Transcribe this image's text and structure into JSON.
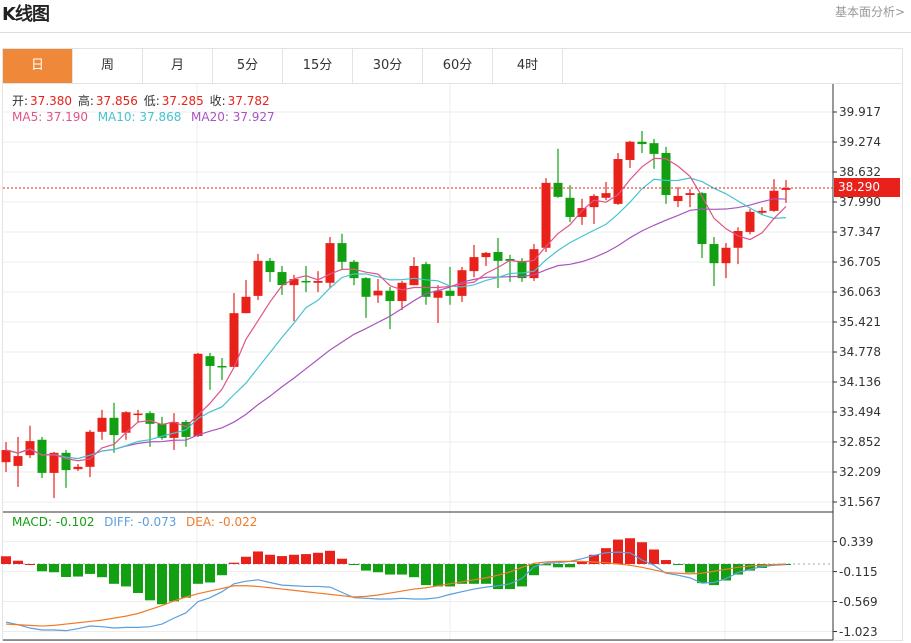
{
  "header": {
    "title": "K线图",
    "more_link": "基本面分析>"
  },
  "tabs": [
    {
      "label": "日",
      "active": true
    },
    {
      "label": "周"
    },
    {
      "label": "月"
    },
    {
      "label": "5分"
    },
    {
      "label": "15分"
    },
    {
      "label": "30分"
    },
    {
      "label": "60分"
    },
    {
      "label": "4时"
    }
  ],
  "info": {
    "open_label": "开:",
    "open": "37.380",
    "high_label": "高:",
    "high": "37.856",
    "low_label": "低:",
    "low": "37.285",
    "close_label": "收:",
    "close": "37.782",
    "ma5": "MA5: 37.190",
    "ma10": "MA10: 37.868",
    "ma20": "MA20: 37.927"
  },
  "macd_info": {
    "macd": "MACD: -0.102",
    "diff": "DIFF: -0.073",
    "dea": "DEA: -0.022"
  },
  "current_price": "38.290",
  "colors": {
    "up": "#e8211a",
    "down": "#12a012",
    "ma5": "#e0548a",
    "ma10": "#45c3cf",
    "ma20": "#a855c0",
    "diff": "#5a9fe0",
    "dea": "#f07a2a",
    "active_tab": "#f0883a"
  },
  "chart_data": {
    "type": "candlestick",
    "price_ticks": [
      "39.917",
      "39.274",
      "38.632",
      "37.990",
      "37.347",
      "36.705",
      "36.063",
      "35.421",
      "34.778",
      "34.136",
      "33.494",
      "32.852",
      "32.209",
      "31.567"
    ],
    "price_range": [
      31.567,
      39.917
    ],
    "macd_ticks": [
      "0.339",
      "-0.115",
      "-0.569",
      "-1.023"
    ],
    "ohlc": [
      [
        32.42,
        32.68,
        32.85,
        32.21
      ],
      [
        32.34,
        32.55,
        32.96,
        31.89
      ],
      [
        32.57,
        32.87,
        33.2,
        32.51
      ],
      [
        32.9,
        32.19,
        32.96,
        32.08
      ],
      [
        32.19,
        32.62,
        32.64,
        31.65
      ],
      [
        32.62,
        32.25,
        32.68,
        31.87
      ],
      [
        32.27,
        32.32,
        32.38,
        32.23
      ],
      [
        32.32,
        33.07,
        33.11,
        32.1
      ],
      [
        33.07,
        33.37,
        33.54,
        32.9
      ],
      [
        33.37,
        33.0,
        33.69,
        32.62
      ],
      [
        33.05,
        33.49,
        33.51,
        32.9
      ],
      [
        33.44,
        33.46,
        33.54,
        33.26
      ],
      [
        33.47,
        33.24,
        33.51,
        32.75
      ],
      [
        33.24,
        32.94,
        33.39,
        32.9
      ],
      [
        32.94,
        33.28,
        33.47,
        32.68
      ],
      [
        33.28,
        32.96,
        33.32,
        32.75
      ],
      [
        32.98,
        34.74,
        34.76,
        32.96
      ],
      [
        34.69,
        34.48,
        34.76,
        33.97
      ],
      [
        34.48,
        34.46,
        34.65,
        34.18
      ],
      [
        34.46,
        35.61,
        36.04,
        34.46
      ],
      [
        35.61,
        35.96,
        36.32,
        35.61
      ],
      [
        35.98,
        36.73,
        36.88,
        35.89
      ],
      [
        36.73,
        36.49,
        36.79,
        36.28
      ],
      [
        36.49,
        36.21,
        36.62,
        36.0
      ],
      [
        36.21,
        36.34,
        36.43,
        35.44
      ],
      [
        36.3,
        36.28,
        36.62,
        36.06
      ],
      [
        36.26,
        36.3,
        36.51,
        36.06
      ],
      [
        36.26,
        37.11,
        37.24,
        36.15
      ],
      [
        37.11,
        36.71,
        37.31,
        36.53
      ],
      [
        36.71,
        36.36,
        36.75,
        36.21
      ],
      [
        36.36,
        35.96,
        36.38,
        35.51
      ],
      [
        35.99,
        36.09,
        36.34,
        35.83
      ],
      [
        36.09,
        35.87,
        36.17,
        35.27
      ],
      [
        35.87,
        36.26,
        36.3,
        35.68
      ],
      [
        36.21,
        36.62,
        36.81,
        36.21
      ],
      [
        36.66,
        35.96,
        36.71,
        35.79
      ],
      [
        35.94,
        36.09,
        36.21,
        35.4
      ],
      [
        36.09,
        35.98,
        36.6,
        35.79
      ],
      [
        35.98,
        36.53,
        36.6,
        35.85
      ],
      [
        36.51,
        36.81,
        37.07,
        36.38
      ],
      [
        36.81,
        36.9,
        36.92,
        36.62
      ],
      [
        36.92,
        36.73,
        37.22,
        36.15
      ],
      [
        36.77,
        36.73,
        36.86,
        36.28
      ],
      [
        36.73,
        36.36,
        36.79,
        36.28
      ],
      [
        36.36,
        36.98,
        37.09,
        36.3
      ],
      [
        37.01,
        38.4,
        38.5,
        36.92
      ],
      [
        38.4,
        38.1,
        39.13,
        38.08
      ],
      [
        38.08,
        37.67,
        38.35,
        37.56
      ],
      [
        37.67,
        37.86,
        38.06,
        37.5
      ],
      [
        37.88,
        38.12,
        38.16,
        37.52
      ],
      [
        38.08,
        38.18,
        38.42,
        38.03
      ],
      [
        37.95,
        38.91,
        39.04,
        37.93
      ],
      [
        38.89,
        39.28,
        39.3,
        38.72
      ],
      [
        39.28,
        39.23,
        39.51,
        39.04
      ],
      [
        39.25,
        39.02,
        39.34,
        38.7
      ],
      [
        39.04,
        38.14,
        39.17,
        37.95
      ],
      [
        38.01,
        38.12,
        38.31,
        37.88
      ],
      [
        38.14,
        38.18,
        38.27,
        37.88
      ],
      [
        38.18,
        37.09,
        38.2,
        36.79
      ],
      [
        37.09,
        36.68,
        37.24,
        36.19
      ],
      [
        36.68,
        37.01,
        37.11,
        36.36
      ],
      [
        37.01,
        37.37,
        37.45,
        36.66
      ],
      [
        37.35,
        37.78,
        37.84,
        37.3
      ],
      [
        37.76,
        37.8,
        37.88,
        37.71
      ],
      [
        37.8,
        38.23,
        38.48,
        37.78
      ],
      [
        38.25,
        38.29,
        38.46,
        37.97
      ]
    ],
    "macd_hist": [
      0.117,
      0.05,
      0,
      -0.11,
      -0.125,
      -0.197,
      -0.19,
      -0.15,
      -0.2,
      -0.3,
      -0.34,
      -0.44,
      -0.55,
      -0.61,
      -0.566,
      -0.51,
      -0.3,
      -0.28,
      -0.17,
      0.02,
      0.11,
      0.19,
      0.14,
      0.12,
      0.14,
      0.15,
      0.17,
      0.2,
      0.08,
      -0.015,
      -0.1,
      -0.125,
      -0.16,
      -0.16,
      -0.2,
      -0.32,
      -0.34,
      -0.34,
      -0.3,
      -0.3,
      -0.3,
      -0.38,
      -0.38,
      -0.34,
      -0.17,
      -0.02,
      -0.05,
      -0.05,
      0.04,
      0.14,
      0.24,
      0.37,
      0.39,
      0.33,
      0.22,
      0.06,
      -0.01,
      -0.13,
      -0.29,
      -0.32,
      -0.25,
      -0.16,
      -0.1,
      -0.06,
      -0.02,
      -0.01
    ],
    "diff": [
      -0.88,
      -0.92,
      -0.97,
      -1.0,
      -1.0,
      -1.01,
      -0.98,
      -0.94,
      -0.95,
      -0.97,
      -0.96,
      -0.96,
      -0.95,
      -0.91,
      -0.82,
      -0.74,
      -0.57,
      -0.51,
      -0.42,
      -0.3,
      -0.26,
      -0.24,
      -0.28,
      -0.32,
      -0.33,
      -0.34,
      -0.34,
      -0.35,
      -0.43,
      -0.51,
      -0.52,
      -0.53,
      -0.53,
      -0.52,
      -0.53,
      -0.53,
      -0.51,
      -0.46,
      -0.42,
      -0.38,
      -0.35,
      -0.33,
      -0.3,
      -0.22,
      -0.04,
      0.01,
      0.02,
      0.04,
      0.08,
      0.13,
      0.17,
      0.18,
      0.17,
      0.06,
      -0.02,
      -0.14,
      -0.17,
      -0.21,
      -0.29,
      -0.28,
      -0.22,
      -0.13,
      -0.08,
      -0.04,
      -0.02,
      -0.01
    ],
    "dea": [
      -0.91,
      -0.92,
      -0.93,
      -0.94,
      -0.93,
      -0.91,
      -0.89,
      -0.87,
      -0.85,
      -0.82,
      -0.79,
      -0.75,
      -0.69,
      -0.63,
      -0.56,
      -0.5,
      -0.45,
      -0.41,
      -0.37,
      -0.33,
      -0.33,
      -0.34,
      -0.36,
      -0.38,
      -0.4,
      -0.42,
      -0.44,
      -0.46,
      -0.48,
      -0.5,
      -0.49,
      -0.47,
      -0.44,
      -0.41,
      -0.38,
      -0.36,
      -0.33,
      -0.3,
      -0.27,
      -0.24,
      -0.21,
      -0.17,
      -0.12,
      -0.05,
      0.01,
      0.03,
      0.04,
      0.04,
      0.04,
      0.03,
      0.02,
      0.0,
      -0.02,
      -0.05,
      -0.09,
      -0.13,
      -0.14,
      -0.15,
      -0.14,
      -0.11,
      -0.08,
      -0.05,
      -0.03,
      -0.02,
      -0.01,
      0
    ]
  }
}
